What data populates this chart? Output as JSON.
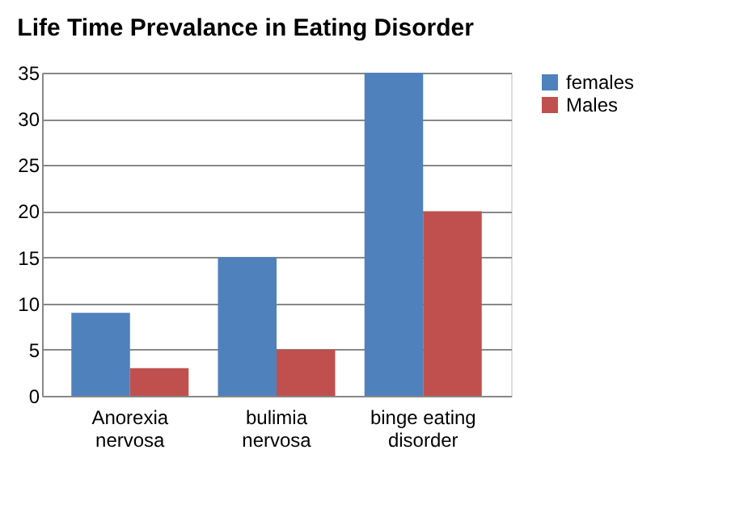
{
  "chart_data": {
    "type": "bar",
    "title": "Life Time Prevalance in Eating Disorder",
    "categories": [
      "Anorexia nervosa",
      "bulimia nervosa",
      "binge eating disorder"
    ],
    "series": [
      {
        "name": "females",
        "color": "#4f81bd",
        "values": [
          9,
          15,
          35
        ]
      },
      {
        "name": "Males",
        "color": "#c0504d",
        "values": [
          3,
          5,
          20
        ]
      }
    ],
    "ylim": [
      0,
      35
    ],
    "yticks": [
      0,
      5,
      10,
      15,
      20,
      25,
      30,
      35
    ],
    "grid": "y",
    "legend": "right"
  }
}
